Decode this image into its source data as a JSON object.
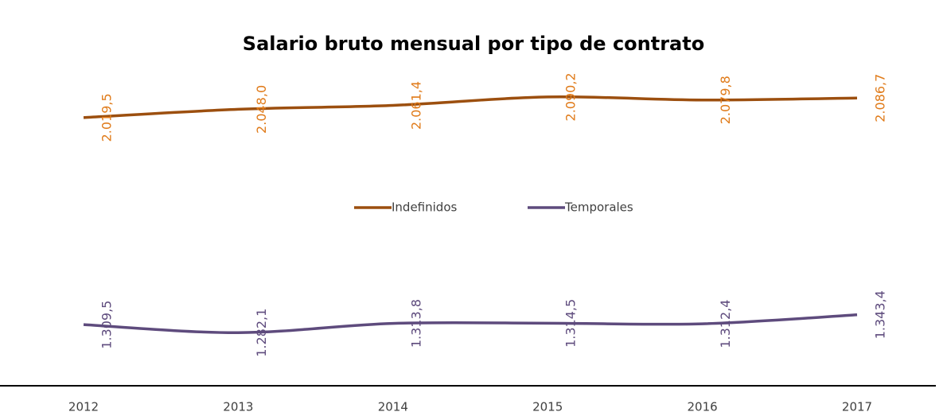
{
  "chart_data": {
    "type": "line",
    "title": "Salario bruto mensual por tipo de contrato",
    "categories": [
      "2012",
      "2013",
      "2014",
      "2015",
      "2016",
      "2017"
    ],
    "series": [
      {
        "name": "Indefinidos",
        "color": "#9c4f0f",
        "label_color": "#e07b1a",
        "values": [
          2019.5,
          2048.0,
          2061.4,
          2090.2,
          2079.8,
          2086.7
        ],
        "value_labels": [
          "2.019,5",
          "2.048,0",
          "2.061,4",
          "2.090,2",
          "2.079,8",
          "2.086,7"
        ]
      },
      {
        "name": "Temporales",
        "color": "#5e4b7d",
        "label_color": "#5e4b7d",
        "values": [
          1309.5,
          1282.1,
          1313.8,
          1314.5,
          1312.4,
          1343.4
        ],
        "value_labels": [
          "1.309,5",
          "1.282,1",
          "1.313,8",
          "1.314,5",
          "1.312,4",
          "1.343,4"
        ]
      }
    ],
    "ylim": [
      1100,
      2150
    ],
    "legend": "center"
  }
}
